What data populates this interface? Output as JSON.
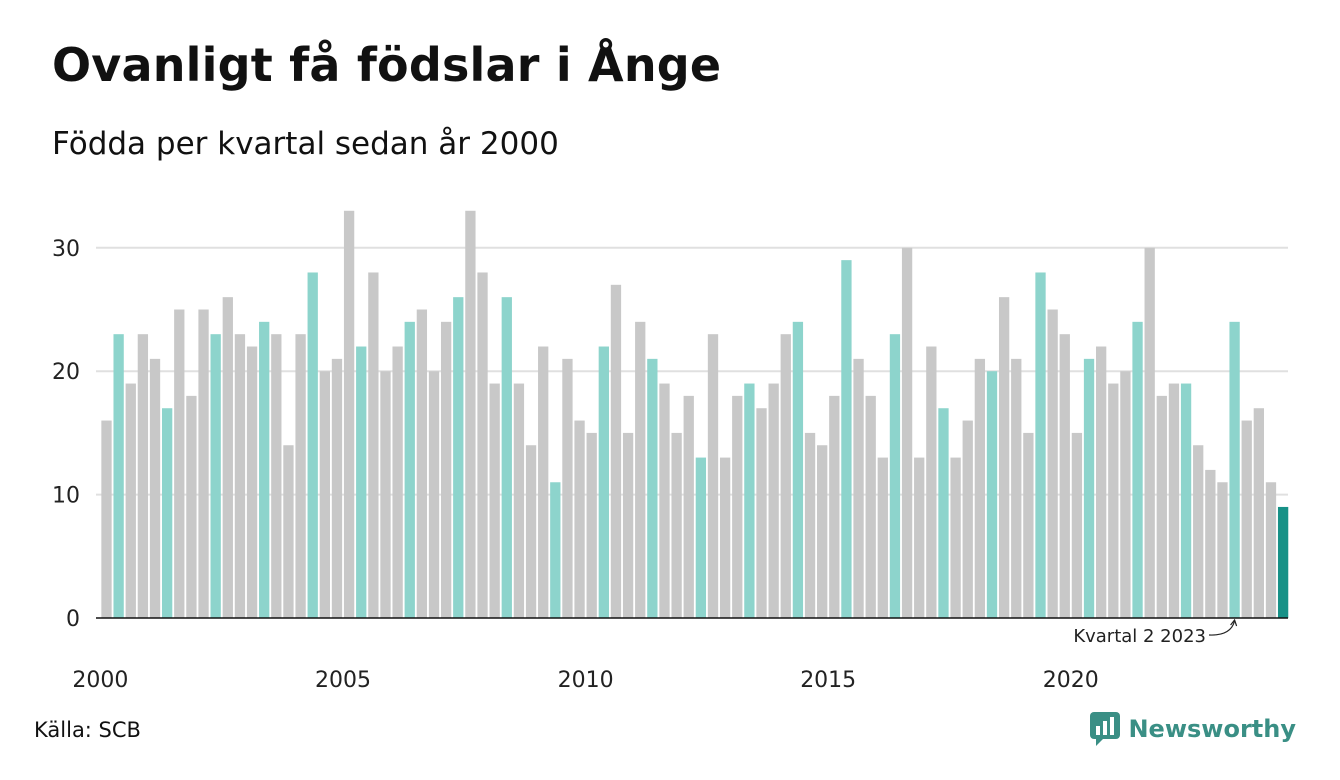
{
  "title": "Ovanligt få födslar i Ånge",
  "subtitle": "Födda per kvartal sedan år 2000",
  "source": "Källa: SCB",
  "brand": {
    "name": "Newsworthy",
    "icon": "newsworthy-logo-icon"
  },
  "colors": {
    "q2": "#8dd4cc",
    "other": "#c8c8c8",
    "latest": "#179187",
    "grid": "#e0e0e0",
    "axis": "#111111"
  },
  "chart_data": {
    "type": "bar",
    "title": "Ovanligt få födslar i Ånge",
    "subtitle": "Födda per kvartal sedan år 2000",
    "ylim": [
      0,
      33
    ],
    "yticks": [
      0,
      10,
      20,
      30
    ],
    "xtick_labels": [
      "2000",
      "2005",
      "2010",
      "2015",
      "2020"
    ],
    "grid": true,
    "start": {
      "year": 2000,
      "quarter": 1
    },
    "values": [
      16,
      23,
      19,
      23,
      21,
      17,
      25,
      18,
      25,
      23,
      26,
      23,
      22,
      24,
      23,
      14,
      23,
      28,
      20,
      21,
      33,
      22,
      28,
      20,
      22,
      24,
      25,
      20,
      24,
      26,
      33,
      28,
      19,
      26,
      19,
      14,
      22,
      11,
      21,
      16,
      15,
      22,
      27,
      15,
      24,
      21,
      19,
      15,
      18,
      13,
      23,
      13,
      18,
      19,
      17,
      19,
      23,
      24,
      15,
      14,
      18,
      29,
      21,
      18,
      13,
      23,
      30,
      13,
      22,
      17,
      13,
      16,
      21,
      20,
      26,
      21,
      15,
      28,
      25,
      23,
      15,
      21,
      22,
      19,
      20,
      24,
      30,
      18,
      19,
      19,
      14,
      12,
      11,
      24,
      16,
      17,
      11,
      9
    ],
    "annotation": {
      "text": "Kvartal 2 2023",
      "target_index": 93
    }
  }
}
